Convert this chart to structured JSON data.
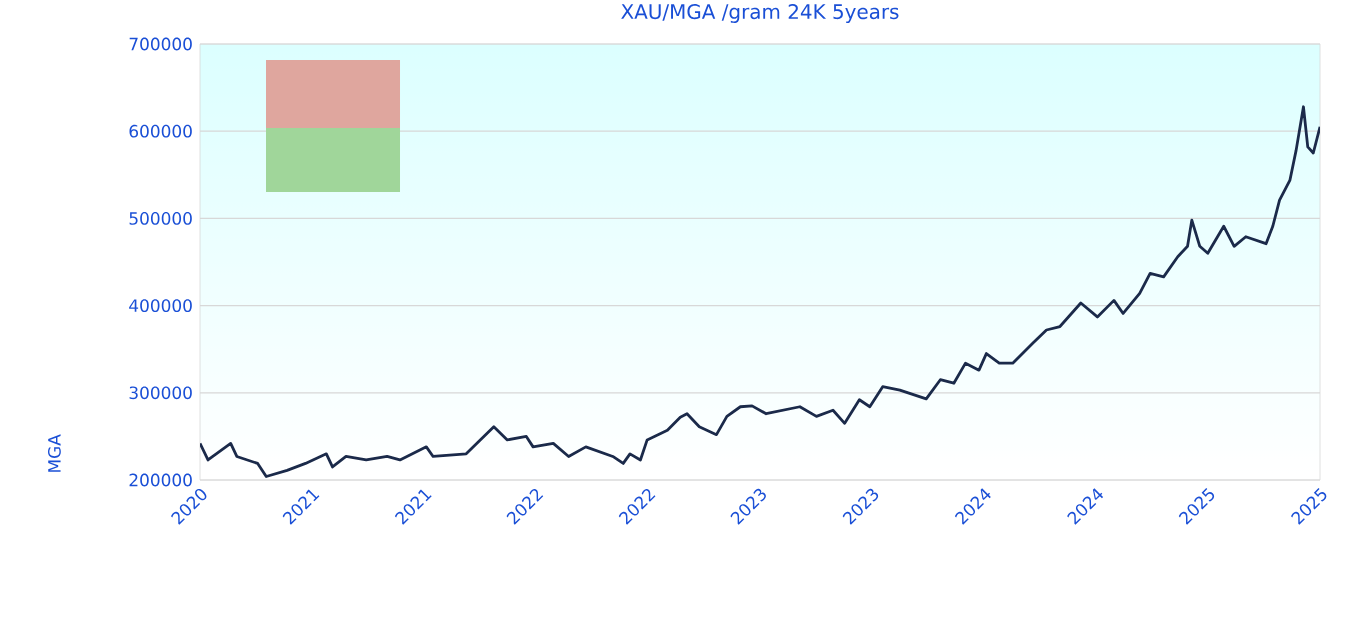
{
  "chart_data": {
    "type": "line",
    "title": "XAU/MGA /gram 24K 5years",
    "ylabel": "MGA",
    "xlim": [
      "2020-10-25",
      "2025-10-25"
    ],
    "ylim": [
      200000,
      700000
    ],
    "xticks": [
      {
        "value": "2020-10-25",
        "label": "2020"
      },
      {
        "value": "2021-04-25",
        "label": "2021"
      },
      {
        "value": "2021-10-25",
        "label": "2021"
      },
      {
        "value": "2022-04-25",
        "label": "2022"
      },
      {
        "value": "2022-10-25",
        "label": "2022"
      },
      {
        "value": "2023-04-25",
        "label": "2023"
      },
      {
        "value": "2023-10-25",
        "label": "2023"
      },
      {
        "value": "2024-04-25",
        "label": "2024"
      },
      {
        "value": "2024-10-25",
        "label": "2024"
      },
      {
        "value": "2025-04-25",
        "label": "2025"
      },
      {
        "value": "2025-10-25",
        "label": "2025"
      }
    ],
    "yticks": [
      200000,
      300000,
      400000,
      500000,
      600000,
      700000
    ],
    "grid": "y",
    "x": [
      "2020-10-25",
      "2020-11-07",
      "2020-12-14",
      "2020-12-24",
      "2021-01-27",
      "2021-02-10",
      "2021-03-16",
      "2021-04-15",
      "2021-05-19",
      "2021-05-29",
      "2021-06-20",
      "2021-07-23",
      "2021-08-26",
      "2021-09-16",
      "2021-10-29",
      "2021-11-09",
      "2022-01-02",
      "2022-02-16",
      "2022-03-10",
      "2022-04-10",
      "2022-04-21",
      "2022-05-24",
      "2022-06-18",
      "2022-07-16",
      "2022-08-29",
      "2022-09-15",
      "2022-09-26",
      "2022-10-13",
      "2022-10-24",
      "2022-11-26",
      "2022-12-17",
      "2022-12-28",
      "2023-01-17",
      "2023-02-14",
      "2023-03-03",
      "2023-03-25",
      "2023-04-13",
      "2023-05-06",
      "2023-06-30",
      "2023-07-27",
      "2023-08-23",
      "2023-09-11",
      "2023-10-05",
      "2023-10-22",
      "2023-11-12",
      "2023-12-10",
      "2024-01-22",
      "2024-02-14",
      "2024-03-07",
      "2024-03-26",
      "2024-04-17",
      "2024-04-29",
      "2024-05-20",
      "2024-06-11",
      "2024-07-14",
      "2024-08-05",
      "2024-08-27",
      "2024-09-30",
      "2024-10-27",
      "2024-11-23",
      "2024-12-08",
      "2025-01-04",
      "2025-01-21",
      "2025-02-12",
      "2025-03-07",
      "2025-03-23",
      "2025-03-30",
      "2025-04-12",
      "2025-04-25",
      "2025-05-21",
      "2025-06-07",
      "2025-06-26",
      "2025-07-29",
      "2025-08-09",
      "2025-08-20",
      "2025-09-06",
      "2025-09-16",
      "2025-09-28",
      "2025-10-05",
      "2025-10-14",
      "2025-10-25"
    ],
    "series": [
      {
        "color": "#1b2a4a",
        "values": [
          242000,
          223000,
          242000,
          227000,
          219000,
          204000,
          211000,
          219000,
          230000,
          215000,
          227000,
          223000,
          227000,
          223000,
          238000,
          227000,
          230000,
          261000,
          246000,
          250000,
          238000,
          242000,
          227000,
          238000,
          227000,
          219000,
          230000,
          223000,
          246000,
          257000,
          272000,
          276000,
          261000,
          252000,
          273000,
          284000,
          285000,
          276000,
          284000,
          273000,
          280000,
          265000,
          292000,
          284000,
          307000,
          303000,
          293000,
          315000,
          311000,
          334000,
          326000,
          345000,
          334000,
          334000,
          357000,
          372000,
          376000,
          403000,
          387000,
          406000,
          391000,
          414000,
          437000,
          433000,
          456000,
          468000,
          498000,
          468000,
          460000,
          491000,
          468000,
          479000,
          471000,
          491000,
          521000,
          544000,
          578000,
          628000,
          582000,
          575000,
          605000
        ]
      }
    ]
  }
}
